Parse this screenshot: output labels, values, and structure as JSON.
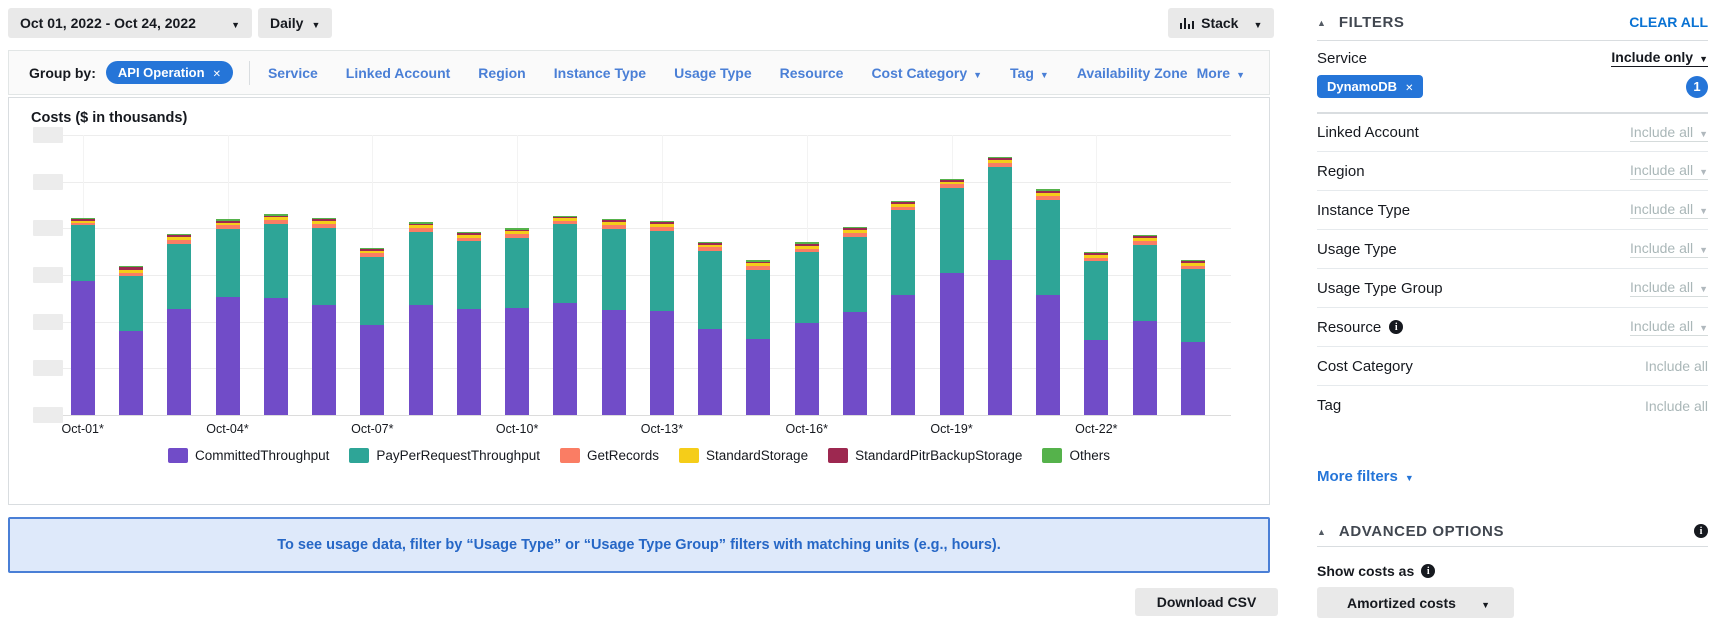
{
  "toolbar": {
    "date_range": "Oct 01, 2022 - Oct 24, 2022",
    "granularity": "Daily",
    "chart_style": "Stack"
  },
  "group_by": {
    "label": "Group by:",
    "chip": "API Operation",
    "items": [
      {
        "label": "Service",
        "caret": false
      },
      {
        "label": "Linked Account",
        "caret": false
      },
      {
        "label": "Region",
        "caret": false
      },
      {
        "label": "Instance Type",
        "caret": false
      },
      {
        "label": "Usage Type",
        "caret": false
      },
      {
        "label": "Resource",
        "caret": false
      },
      {
        "label": "Cost Category",
        "caret": true
      },
      {
        "label": "Tag",
        "caret": true
      },
      {
        "label": "Availability Zone",
        "caret": false
      }
    ],
    "more_label": "More"
  },
  "chart_data": {
    "type": "bar",
    "stacked": true,
    "title": "Costs ($ in thousands)",
    "categories": [
      "Oct-01",
      "Oct-02",
      "Oct-03",
      "Oct-04",
      "Oct-05",
      "Oct-06",
      "Oct-07",
      "Oct-08",
      "Oct-09",
      "Oct-10",
      "Oct-11",
      "Oct-12",
      "Oct-13",
      "Oct-14",
      "Oct-15",
      "Oct-16",
      "Oct-17",
      "Oct-18",
      "Oct-19",
      "Oct-20",
      "Oct-21",
      "Oct-22",
      "Oct-23",
      "Oct-24"
    ],
    "x_tick_labels": [
      "Oct-01*",
      "Oct-04*",
      "Oct-07*",
      "Oct-10*",
      "Oct-13*",
      "Oct-16*",
      "Oct-19*",
      "Oct-22*"
    ],
    "y_tick_labels_redacted": true,
    "y_unit": "gridline intervals (axis labels blurred in source; values estimated)",
    "ylim": [
      0,
      6
    ],
    "grid": true,
    "legend_position": "bottom",
    "series": [
      {
        "name": "CommittedThroughput",
        "color": "#714CC8",
        "values": [
          2.86,
          1.79,
          2.28,
          2.53,
          2.51,
          2.35,
          1.92,
          2.36,
          2.26,
          2.29,
          2.4,
          2.24,
          2.22,
          1.85,
          1.63,
          1.96,
          2.21,
          2.58,
          3.03,
          3.31,
          2.58,
          1.61,
          2.01,
          1.57
        ]
      },
      {
        "name": "PayPerRequestThroughput",
        "color": "#2EA597",
        "values": [
          1.21,
          1.18,
          1.39,
          1.45,
          1.59,
          1.66,
          1.46,
          1.56,
          1.46,
          1.5,
          1.69,
          1.75,
          1.73,
          1.66,
          1.48,
          1.52,
          1.61,
          1.8,
          1.83,
          2.01,
          2.03,
          1.68,
          1.64,
          1.56
        ]
      },
      {
        "name": "GetRecords",
        "color": "#FA7D64",
        "values": [
          0.05,
          0.08,
          0.08,
          0.08,
          0.08,
          0.08,
          0.08,
          0.08,
          0.08,
          0.08,
          0.07,
          0.08,
          0.08,
          0.08,
          0.08,
          0.08,
          0.08,
          0.08,
          0.08,
          0.08,
          0.08,
          0.08,
          0.08,
          0.07
        ]
      },
      {
        "name": "StandardStorage",
        "color": "#F5CD19",
        "values": [
          0.04,
          0.06,
          0.06,
          0.06,
          0.06,
          0.06,
          0.06,
          0.06,
          0.06,
          0.06,
          0.05,
          0.06,
          0.06,
          0.06,
          0.06,
          0.06,
          0.06,
          0.06,
          0.06,
          0.06,
          0.06,
          0.06,
          0.06,
          0.05
        ]
      },
      {
        "name": "StandardPitrBackupStorage",
        "color": "#9D2850",
        "values": [
          0.03,
          0.05,
          0.04,
          0.04,
          0.03,
          0.04,
          0.03,
          0.04,
          0.04,
          0.04,
          0.03,
          0.04,
          0.04,
          0.03,
          0.03,
          0.05,
          0.04,
          0.04,
          0.03,
          0.04,
          0.05,
          0.05,
          0.05,
          0.05
        ]
      },
      {
        "name": "Others",
        "color": "#55B24B",
        "values": [
          0.03,
          0.03,
          0.03,
          0.03,
          0.03,
          0.03,
          0.03,
          0.03,
          0.03,
          0.03,
          0.02,
          0.03,
          0.03,
          0.03,
          0.03,
          0.03,
          0.03,
          0.03,
          0.03,
          0.03,
          0.03,
          0.02,
          0.02,
          0.02
        ]
      }
    ]
  },
  "banner": {
    "text": "To see usage data, filter by “Usage Type” or “Usage Type Group” filters with matching units (e.g., hours)."
  },
  "footer": {
    "download_csv": "Download CSV"
  },
  "sidebar": {
    "header": {
      "title": "FILTERS",
      "clear_all": "CLEAR ALL"
    },
    "service_filter": {
      "label": "Service",
      "mode": "Include only",
      "chip": "DynamoDB",
      "count": "1"
    },
    "filters": [
      {
        "label": "Linked Account",
        "value": "Include all",
        "caret": true,
        "underline": true,
        "info": false
      },
      {
        "label": "Region",
        "value": "Include all",
        "caret": true,
        "underline": true,
        "info": false
      },
      {
        "label": "Instance Type",
        "value": "Include all",
        "caret": true,
        "underline": true,
        "info": false
      },
      {
        "label": "Usage Type",
        "value": "Include all",
        "caret": true,
        "underline": true,
        "info": false
      },
      {
        "label": "Usage Type Group",
        "value": "Include all",
        "caret": true,
        "underline": true,
        "info": false
      },
      {
        "label": "Resource",
        "value": "Include all",
        "caret": true,
        "underline": true,
        "info": true
      },
      {
        "label": "Cost Category",
        "value": "Include all",
        "caret": false,
        "underline": false,
        "info": false
      },
      {
        "label": "Tag",
        "value": "Include all",
        "caret": false,
        "underline": false,
        "info": false
      }
    ],
    "more_filters": "More filters",
    "advanced": {
      "title": "ADVANCED OPTIONS",
      "show_costs_as": "Show costs as",
      "value": "Amortized costs"
    }
  },
  "colors": {
    "accent_blue": "#2575D8",
    "link_blue": "#4A7FD6",
    "clear_all_blue": "#0972D3",
    "banner_bg": "#DEE9FA",
    "banner_border": "#4A7FD6",
    "banner_text": "#2667C6",
    "button_gray": "#E9E9E9",
    "muted_gray": "#AAB7B8"
  }
}
